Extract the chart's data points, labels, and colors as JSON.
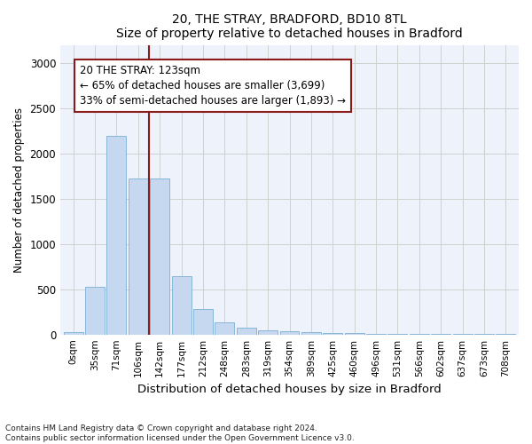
{
  "title1": "20, THE STRAY, BRADFORD, BD10 8TL",
  "title2": "Size of property relative to detached houses in Bradford",
  "xlabel": "Distribution of detached houses by size in Bradford",
  "ylabel": "Number of detached properties",
  "footnote": "Contains HM Land Registry data © Crown copyright and database right 2024.\nContains public sector information licensed under the Open Government Licence v3.0.",
  "bar_labels": [
    "0sqm",
    "35sqm",
    "71sqm",
    "106sqm",
    "142sqm",
    "177sqm",
    "212sqm",
    "248sqm",
    "283sqm",
    "319sqm",
    "354sqm",
    "389sqm",
    "425sqm",
    "460sqm",
    "496sqm",
    "531sqm",
    "566sqm",
    "602sqm",
    "637sqm",
    "673sqm",
    "708sqm"
  ],
  "bar_values": [
    30,
    525,
    2190,
    1720,
    1720,
    640,
    280,
    130,
    75,
    45,
    35,
    25,
    20,
    15,
    10,
    5,
    5,
    5,
    5,
    5,
    5
  ],
  "bar_color": "#c5d8f0",
  "bar_edgecolor": "#7bafd4",
  "vline_x": 3.5,
  "vline_color": "#8b1a1a",
  "annotation_text": "20 THE STRAY: 123sqm\n← 65% of detached houses are smaller (3,699)\n33% of semi-detached houses are larger (1,893) →",
  "annotation_box_color": "#8b1a1a",
  "ylim": [
    0,
    3200
  ],
  "yticks": [
    0,
    500,
    1000,
    1500,
    2000,
    2500,
    3000
  ],
  "grid_color": "#d0d0d0",
  "bg_color": "#eef2fa",
  "title1_fontsize": 13,
  "title2_fontsize": 11
}
